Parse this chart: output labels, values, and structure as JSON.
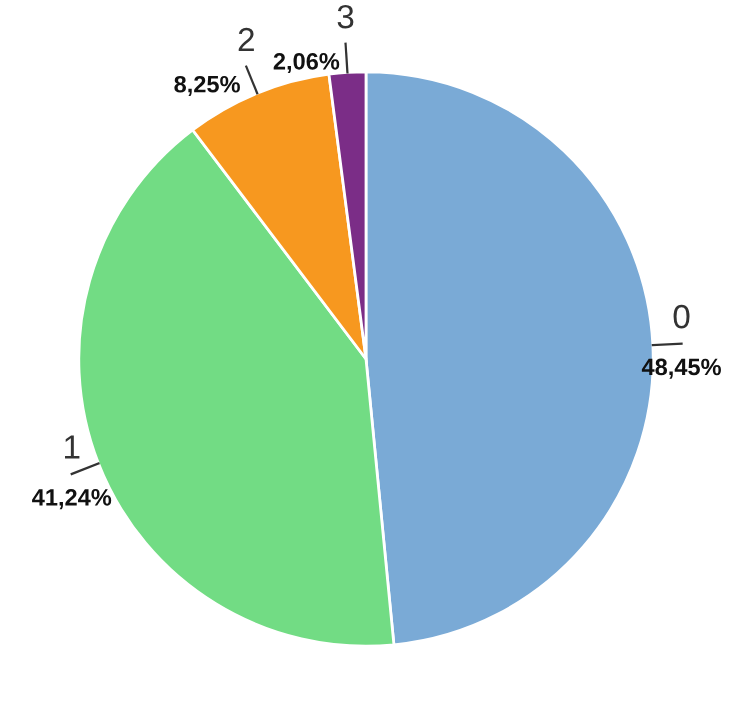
{
  "chart_data": {
    "type": "pie",
    "categories": [
      "0",
      "1",
      "2",
      "3"
    ],
    "values": [
      48.45,
      41.24,
      8.25,
      2.06
    ],
    "value_labels": [
      "48,45%",
      "41,24%",
      "8,25%",
      "2,06%"
    ],
    "colors": [
      "#7aaad6",
      "#72dc84",
      "#f7981f",
      "#7b2d87"
    ]
  }
}
